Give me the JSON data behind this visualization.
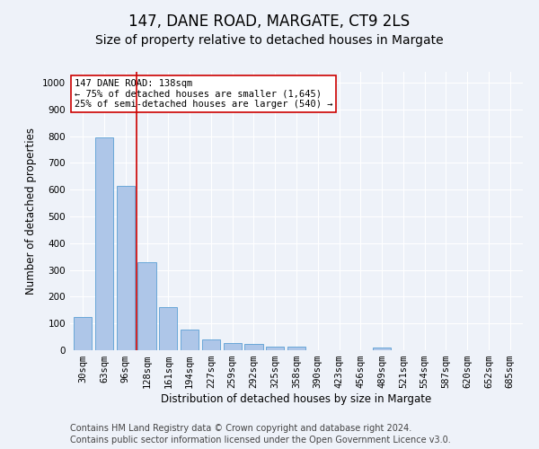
{
  "title": "147, DANE ROAD, MARGATE, CT9 2LS",
  "subtitle": "Size of property relative to detached houses in Margate",
  "xlabel": "Distribution of detached houses by size in Margate",
  "ylabel": "Number of detached properties",
  "categories": [
    "30sqm",
    "63sqm",
    "96sqm",
    "128sqm",
    "161sqm",
    "194sqm",
    "227sqm",
    "259sqm",
    "292sqm",
    "325sqm",
    "358sqm",
    "390sqm",
    "423sqm",
    "456sqm",
    "489sqm",
    "521sqm",
    "554sqm",
    "587sqm",
    "620sqm",
    "652sqm",
    "685sqm"
  ],
  "values": [
    125,
    795,
    615,
    330,
    160,
    77,
    40,
    27,
    24,
    15,
    15,
    0,
    0,
    0,
    10,
    0,
    0,
    0,
    0,
    0,
    0
  ],
  "bar_color": "#aec6e8",
  "bar_edge_color": "#5a9fd4",
  "vline_x_index": 3,
  "vline_color": "#cc0000",
  "annotation_text": "147 DANE ROAD: 138sqm\n← 75% of detached houses are smaller (1,645)\n25% of semi-detached houses are larger (540) →",
  "annotation_box_color": "#ffffff",
  "annotation_box_edge": "#cc0000",
  "ylim": [
    0,
    1040
  ],
  "yticks": [
    0,
    100,
    200,
    300,
    400,
    500,
    600,
    700,
    800,
    900,
    1000
  ],
  "footer_line1": "Contains HM Land Registry data © Crown copyright and database right 2024.",
  "footer_line2": "Contains public sector information licensed under the Open Government Licence v3.0.",
  "background_color": "#eef2f9",
  "grid_color": "#ffffff",
  "title_fontsize": 12,
  "subtitle_fontsize": 10,
  "axis_label_fontsize": 8.5,
  "tick_fontsize": 7.5,
  "annotation_fontsize": 7.5,
  "footer_fontsize": 7
}
